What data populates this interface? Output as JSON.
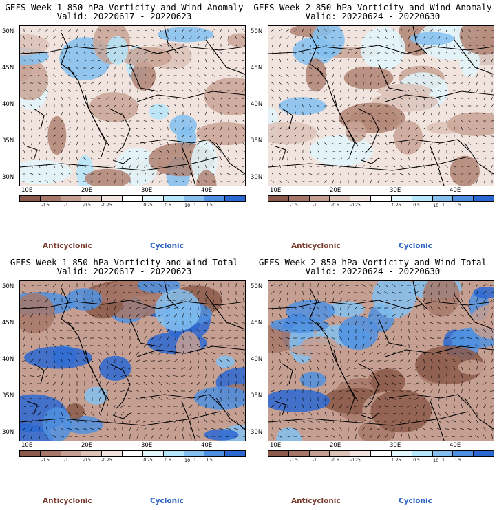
{
  "colors": {
    "anticyclonic_text": "#7a3d2f",
    "cyclonic_text": "#2e63c4",
    "colorbar": [
      "#8b5a4a",
      "#a7786a",
      "#c59f92",
      "#ddc2b8",
      "#f1e4df",
      "#ffffff",
      "#e2f6fc",
      "#b6e6fa",
      "#84bff0",
      "#4f91e0",
      "#2b68d2"
    ],
    "coastline": "#000000",
    "wind_vector": "#000000"
  },
  "panels": [
    {
      "title_line1": "GEFS Week-1 850-hPa Vorticity and Wind Anomaly",
      "title_line2": "Valid: 20220617 - 20220623",
      "lat_labels": [
        "50N",
        "45N",
        "40N",
        "35N",
        "30N"
      ],
      "lon_labels": [
        "10E",
        "20E",
        "30E",
        "40E"
      ],
      "colorbar_labels": [
        "-1.5",
        "-1",
        "-0.5",
        "-0.25",
        "0.25",
        "0.5",
        "1",
        "1.5"
      ],
      "colorbar_unit": "10",
      "legend_left": "Anticyclonic",
      "legend_right": "Cyclonic",
      "field": "anomaly"
    },
    {
      "title_line1": "GEFS Week-2 850-hPa Vorticity and Wind Anomaly",
      "title_line2": "Valid: 20220624 - 20220630",
      "lat_labels": [
        "50N",
        "45N",
        "40N",
        "35N",
        "30N"
      ],
      "lon_labels": [
        "10E",
        "20E",
        "30E",
        "40E"
      ],
      "colorbar_labels": [
        "-1.5",
        "-1",
        "-0.5",
        "-0.25",
        "0.25",
        "0.5",
        "1",
        "1.5"
      ],
      "colorbar_unit": "10",
      "legend_left": "Anticyclonic",
      "legend_right": "Cyclonic",
      "field": "anomaly"
    },
    {
      "title_line1": "GEFS Week-1 850-hPa Vorticity and Wind Total",
      "title_line2": "Valid: 20220617 - 20220623",
      "lat_labels": [
        "50N",
        "45N",
        "40N",
        "35N",
        "30N"
      ],
      "lon_labels": [
        "10E",
        "20E",
        "30E",
        "40E"
      ],
      "colorbar_labels": [
        "-1.5",
        "-1",
        "-0.5",
        "-0.25",
        "0.25",
        "0.5",
        "1",
        "1.5"
      ],
      "colorbar_unit": "10",
      "legend_left": "Anticyclonic",
      "legend_right": "Cyclonic",
      "field": "total"
    },
    {
      "title_line1": "GEFS Week-2 850-hPa Vorticity and Wind Total",
      "title_line2": "Valid: 20220624 - 20220630",
      "lat_labels": [
        "50N",
        "45N",
        "40N",
        "35N",
        "30N"
      ],
      "lon_labels": [
        "10E",
        "20E",
        "30E",
        "40E"
      ],
      "colorbar_labels": [
        "-1.5",
        "-1",
        "-0.5",
        "-0.25",
        "0.25",
        "0.5",
        "1",
        "1.5"
      ],
      "colorbar_unit": "10",
      "legend_left": "Anticyclonic",
      "legend_right": "Cyclonic",
      "field": "total"
    }
  ]
}
